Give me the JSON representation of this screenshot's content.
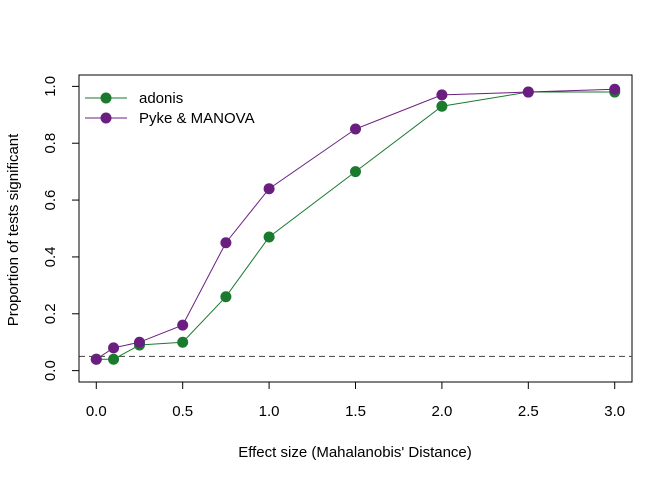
{
  "chart_data": {
    "type": "line",
    "title": "",
    "xlabel": "Effect size (Mahalanobis' Distance)",
    "ylabel": "Proportion of tests significant",
    "x": [
      0.0,
      0.1,
      0.25,
      0.5,
      0.75,
      1.0,
      1.5,
      2.0,
      2.5,
      3.0
    ],
    "xlim": [
      -0.1,
      3.1
    ],
    "ylim": [
      -0.04,
      1.04
    ],
    "x_ticks": [
      "0.0",
      "0.5",
      "1.0",
      "1.5",
      "2.0",
      "2.5",
      "3.0"
    ],
    "x_tick_values": [
      0.0,
      0.5,
      1.0,
      1.5,
      2.0,
      2.5,
      3.0
    ],
    "y_ticks": [
      "0.0",
      "0.2",
      "0.4",
      "0.6",
      "0.8",
      "1.0"
    ],
    "y_tick_values": [
      0.0,
      0.2,
      0.4,
      0.6,
      0.8,
      1.0
    ],
    "reference_line": {
      "y": 0.05,
      "style": "dashed",
      "color": "#555555"
    },
    "grid": false,
    "legend_position": "top-left",
    "series": [
      {
        "name": "adonis",
        "color": "#1a7a2e",
        "values": [
          0.04,
          0.04,
          0.09,
          0.1,
          0.26,
          0.47,
          0.7,
          0.93,
          0.98,
          0.98
        ]
      },
      {
        "name": "Pyke & MANOVA",
        "color": "#6a1f80",
        "values": [
          0.04,
          0.08,
          0.1,
          0.16,
          0.45,
          0.64,
          0.85,
          0.97,
          0.98,
          0.99
        ]
      }
    ]
  }
}
